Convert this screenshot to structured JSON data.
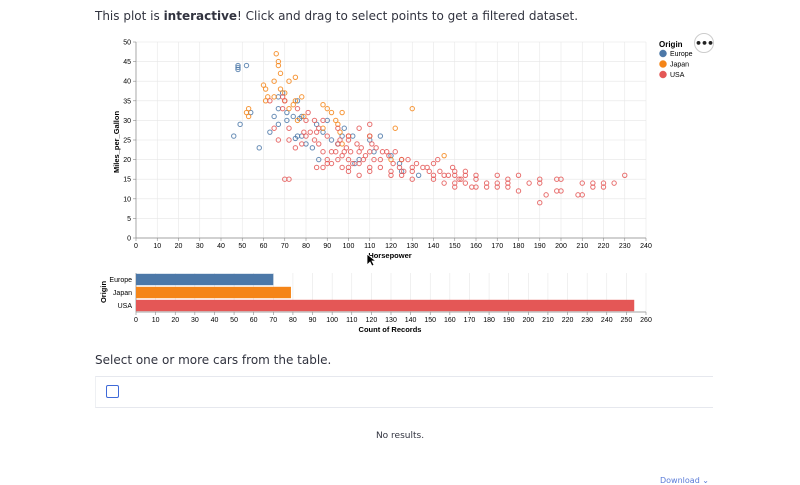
{
  "intro": {
    "prefix": "This plot is ",
    "emphasis": "interactive",
    "suffix": "! Click and drag to select points to get a filtered dataset."
  },
  "colors": {
    "Europe": "#4c78a8",
    "Japan": "#f58518",
    "USA": "#e45756",
    "grid": "#e6e6e6",
    "axis": "#888888"
  },
  "actions_menu": {
    "label": "•••"
  },
  "chart_data": [
    {
      "type": "scatter",
      "xlabel": "Horsepower",
      "ylabel": "Miles_per_Gallon",
      "xlim": [
        0,
        240
      ],
      "ylim": [
        0,
        50
      ],
      "xticks": [
        0,
        10,
        20,
        30,
        40,
        50,
        60,
        70,
        80,
        90,
        100,
        110,
        120,
        130,
        140,
        150,
        160,
        170,
        180,
        190,
        200,
        210,
        220,
        230,
        240
      ],
      "yticks": [
        0,
        5,
        10,
        15,
        20,
        25,
        30,
        35,
        40,
        45,
        50
      ],
      "legend": {
        "title": "Origin",
        "position": "top-right",
        "entries": [
          "Europe",
          "Japan",
          "USA"
        ]
      },
      "series": [
        {
          "name": "Europe",
          "points": [
            [
              46,
              26
            ],
            [
              48,
              43
            ],
            [
              48,
              44
            ],
            [
              52,
              44
            ],
            [
              48,
              43.5
            ],
            [
              49,
              29
            ],
            [
              67,
              36
            ],
            [
              71,
              30
            ],
            [
              74,
              31
            ],
            [
              76,
              26
            ],
            [
              78,
              26
            ],
            [
              67,
              29
            ],
            [
              75,
              25.4
            ],
            [
              77,
              30.5
            ],
            [
              63,
              27
            ],
            [
              80,
              24
            ],
            [
              88,
              27
            ],
            [
              90,
              30
            ],
            [
              95,
              24
            ],
            [
              97,
              26
            ],
            [
              98,
              28
            ],
            [
              102,
              26
            ],
            [
              103,
              19
            ],
            [
              105,
              20
            ],
            [
              110,
              25
            ],
            [
              112,
              22
            ],
            [
              115,
              26
            ],
            [
              120,
              21
            ],
            [
              124,
              19
            ],
            [
              125,
              17
            ],
            [
              133,
              16
            ],
            [
              85,
              29
            ],
            [
              78,
              31
            ],
            [
              71,
              32
            ],
            [
              83,
              23
            ],
            [
              86,
              20
            ],
            [
              67,
              33
            ],
            [
              69,
              37
            ],
            [
              58,
              23
            ],
            [
              54,
              32
            ],
            [
              76,
              35
            ],
            [
              65,
              31
            ],
            [
              92,
              25
            ]
          ]
        },
        {
          "name": "Japan",
          "points": [
            [
              52,
              32
            ],
            [
              53,
              33
            ],
            [
              60,
              39
            ],
            [
              61,
              38
            ],
            [
              62,
              36
            ],
            [
              65,
              40
            ],
            [
              66,
              47
            ],
            [
              67,
              45
            ],
            [
              68,
              38
            ],
            [
              70,
              37
            ],
            [
              72,
              40
            ],
            [
              75,
              41
            ],
            [
              75,
              35
            ],
            [
              78,
              36
            ],
            [
              88,
              34
            ],
            [
              90,
              33
            ],
            [
              92,
              32
            ],
            [
              94,
              30
            ],
            [
              95,
              29
            ],
            [
              96,
              27
            ],
            [
              97,
              24
            ],
            [
              100,
              26
            ],
            [
              110,
              26
            ],
            [
              120,
              20
            ],
            [
              122,
              28
            ],
            [
              125,
              20
            ],
            [
              130,
              33
            ],
            [
              145,
              21
            ],
            [
              72,
              33
            ],
            [
              74,
              34
            ],
            [
              76,
              30
            ],
            [
              79,
              31
            ],
            [
              53,
              31
            ],
            [
              67,
              44
            ],
            [
              68,
              42
            ],
            [
              70,
              35
            ],
            [
              61,
              35
            ],
            [
              65,
              36
            ],
            [
              88,
              28
            ],
            [
              97,
              32
            ]
          ]
        },
        {
          "name": "USA",
          "points": [
            [
              65,
              28
            ],
            [
              67,
              25
            ],
            [
              69,
              33
            ],
            [
              70,
              35
            ],
            [
              72,
              28
            ],
            [
              75,
              23
            ],
            [
              78,
              24
            ],
            [
              80,
              26
            ],
            [
              80,
              30
            ],
            [
              82,
              27
            ],
            [
              84,
              25
            ],
            [
              85,
              27
            ],
            [
              86,
              24
            ],
            [
              88,
              30
            ],
            [
              88,
              22
            ],
            [
              90,
              26
            ],
            [
              90,
              20
            ],
            [
              92,
              19
            ],
            [
              95,
              28
            ],
            [
              95,
              20
            ],
            [
              98,
              22
            ],
            [
              100,
              18
            ],
            [
              100,
              25
            ],
            [
              100,
              20
            ],
            [
              105,
              19
            ],
            [
              105,
              22
            ],
            [
              107,
              20
            ],
            [
              110,
              18
            ],
            [
              110,
              22
            ],
            [
              110,
              26
            ],
            [
              112,
              20
            ],
            [
              115,
              20
            ],
            [
              120,
              17
            ],
            [
              125,
              20
            ],
            [
              130,
              18
            ],
            [
              140,
              19
            ],
            [
              140,
              15
            ],
            [
              145,
              16
            ],
            [
              150,
              17
            ],
            [
              150,
              14
            ],
            [
              153,
              15
            ],
            [
              155,
              17
            ],
            [
              160,
              15
            ],
            [
              165,
              14
            ],
            [
              170,
              16
            ],
            [
              175,
              15
            ],
            [
              180,
              16
            ],
            [
              190,
              15
            ],
            [
              198,
              15
            ],
            [
              200,
              12
            ],
            [
              210,
              14
            ],
            [
              215,
              13
            ],
            [
              220,
              14
            ],
            [
              225,
              14
            ],
            [
              230,
              16
            ],
            [
              150,
              13
            ],
            [
              160,
              13
            ],
            [
              165,
              13
            ],
            [
              170,
              13
            ],
            [
              175,
              13
            ],
            [
              180,
              12
            ],
            [
              190,
              9
            ],
            [
              193,
              11
            ],
            [
              198,
              12
            ],
            [
              208,
              11
            ],
            [
              140,
              16
            ],
            [
              145,
              14
            ],
            [
              137,
              18
            ],
            [
              130,
              15
            ],
            [
              142,
              20
            ],
            [
              149,
              18
            ],
            [
              150,
              16
            ],
            [
              152,
              15
            ],
            [
              155,
              14
            ],
            [
              158,
              13
            ],
            [
              70,
              15
            ],
            [
              72,
              15
            ],
            [
              85,
              18
            ],
            [
              97,
              18
            ],
            [
              100,
              17
            ],
            [
              105,
              16
            ],
            [
              110,
              17
            ],
            [
              120,
              16
            ],
            [
              125,
              16
            ],
            [
              130,
              17
            ],
            [
              135,
              18
            ],
            [
              88,
              18
            ],
            [
              90,
              19
            ],
            [
              92,
              22
            ],
            [
              95,
              24
            ],
            [
              97,
              21
            ],
            [
              102,
              19
            ],
            [
              108,
              21
            ],
            [
              115,
              18
            ],
            [
              118,
              22
            ],
            [
              122,
              22
            ],
            [
              128,
              20
            ],
            [
              132,
              19
            ],
            [
              138,
              17
            ],
            [
              143,
              17
            ],
            [
              147,
              16
            ],
            [
              155,
              16
            ],
            [
              160,
              16
            ],
            [
              170,
              14
            ],
            [
              175,
              14
            ],
            [
              185,
              14
            ],
            [
              190,
              14
            ],
            [
              200,
              15
            ],
            [
              210,
              11
            ],
            [
              215,
              14
            ],
            [
              220,
              13
            ],
            [
              100,
              26
            ],
            [
              105,
              28
            ],
            [
              110,
              29
            ],
            [
              84,
              30
            ],
            [
              81,
              32
            ],
            [
              76,
              33
            ],
            [
              63,
              35
            ],
            [
              69,
              36
            ],
            [
              72,
              25
            ],
            [
              79,
              27
            ],
            [
              86,
              28
            ],
            [
              94,
              22
            ],
            [
              96,
              25
            ],
            [
              99,
              23
            ],
            [
              101,
              22
            ],
            [
              104,
              24
            ],
            [
              106,
              23
            ],
            [
              111,
              24
            ],
            [
              113,
              23
            ],
            [
              116,
              22
            ],
            [
              119,
              21
            ],
            [
              121,
              19
            ],
            [
              124,
              18
            ],
            [
              126,
              17
            ]
          ]
        }
      ]
    },
    {
      "type": "bar",
      "orientation": "horizontal",
      "ylabel": "Origin",
      "xlabel": "Count of Records",
      "categories": [
        "Europe",
        "Japan",
        "USA"
      ],
      "values": [
        70,
        79,
        254
      ],
      "xlim": [
        0,
        260
      ],
      "xticks": [
        0,
        10,
        20,
        30,
        40,
        50,
        60,
        70,
        80,
        90,
        100,
        110,
        120,
        130,
        140,
        150,
        160,
        170,
        180,
        190,
        200,
        210,
        220,
        230,
        240,
        250,
        260
      ]
    }
  ],
  "table": {
    "caption": "Select one or more cars from the table.",
    "empty_text": "No results."
  },
  "download": {
    "label": "Download ⌄"
  }
}
